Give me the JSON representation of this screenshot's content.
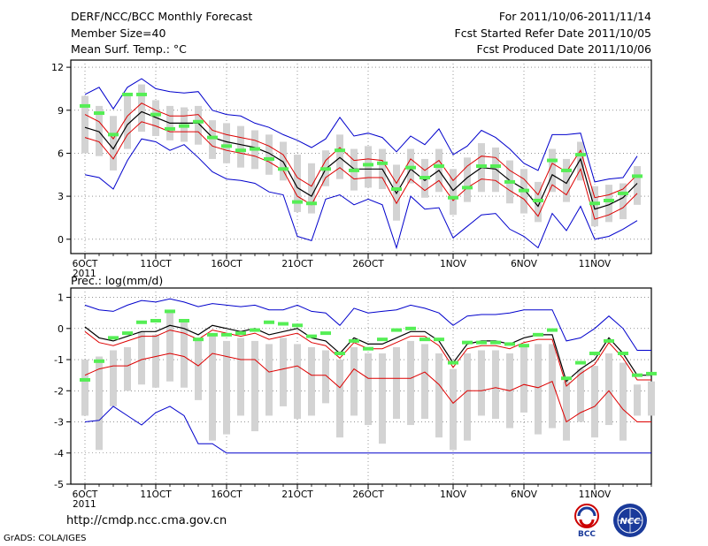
{
  "header": {
    "title": "DERF/NCC/BCC Monthly Forecast",
    "member_size": "Member Size=40",
    "variable": "Mean Surf. Temp.: °C",
    "period": "For 2011/10/06-2011/11/14",
    "fcst_started": "Fcst Started Refer Date 2011/10/05",
    "fcst_produced": "Fcst Produced Date 2011/10/06"
  },
  "footer": {
    "url": "http://cmdp.ncc.cma.gov.cn",
    "grads": "GrADS: COLA/IGES"
  },
  "logos": {
    "bcc": "BCC",
    "ncc": "NCC"
  },
  "colors": {
    "ensemble_mean": "#000000",
    "envelope": "#0000cc",
    "spread": "#dd0000",
    "member_bar": "#d3d3d3",
    "observed_marker": "#55ee55"
  },
  "chart_data": [
    {
      "type": "line",
      "title": "Mean Surf. Temp.: °C",
      "ylim": [
        -1,
        12.5
      ],
      "yticks": [
        0,
        3,
        6,
        9,
        12
      ],
      "x_tick_labels": [
        "6OCT",
        "11OCT",
        "16OCT",
        "21OCT",
        "26OCT",
        "1NOV",
        "6NOV",
        "11NOV"
      ],
      "x_tick_days": [
        0,
        5,
        10,
        15,
        20,
        26,
        31,
        36
      ],
      "year_label": "2011",
      "series": [
        {
          "name": "ensemble mean",
          "values": [
            7.8,
            7.5,
            6.3,
            8.0,
            8.9,
            8.5,
            8.1,
            8.1,
            8.1,
            7.1,
            6.8,
            6.6,
            6.4,
            6.0,
            5.4,
            3.6,
            3.0,
            4.9,
            5.7,
            4.9,
            4.9,
            4.9,
            3.2,
            4.9,
            4.1,
            4.8,
            3.4,
            4.3,
            5.0,
            4.9,
            4.1,
            3.5,
            2.3,
            4.5,
            3.9,
            5.6,
            2.1,
            2.4,
            2.9,
            3.9
          ]
        },
        {
          "name": "upper envelope",
          "values": [
            10.1,
            10.6,
            9.1,
            10.6,
            11.2,
            10.5,
            10.3,
            10.2,
            10.3,
            9.0,
            8.7,
            8.6,
            8.1,
            7.8,
            7.3,
            6.9,
            6.4,
            7.0,
            8.5,
            7.2,
            7.4,
            7.1,
            6.1,
            7.2,
            6.6,
            7.7,
            5.9,
            6.5,
            7.6,
            7.1,
            6.3,
            5.3,
            4.8,
            7.3,
            7.3,
            7.4,
            4.0,
            4.2,
            4.3,
            5.8
          ]
        },
        {
          "name": "lower envelope",
          "values": [
            4.5,
            4.3,
            3.5,
            5.5,
            7.0,
            6.8,
            6.2,
            6.6,
            5.7,
            4.7,
            4.2,
            4.1,
            3.9,
            3.3,
            3.1,
            0.2,
            -0.1,
            2.8,
            3.1,
            2.4,
            2.8,
            2.4,
            -0.6,
            3.0,
            2.1,
            2.2,
            0.1,
            0.9,
            1.7,
            1.8,
            0.7,
            0.2,
            -0.6,
            1.8,
            0.6,
            2.3,
            0.0,
            0.2,
            0.7,
            1.3
          ]
        },
        {
          "name": "spread upper",
          "values": [
            8.7,
            8.2,
            7.0,
            8.6,
            9.5,
            9.0,
            8.6,
            8.6,
            8.7,
            7.6,
            7.3,
            7.1,
            6.9,
            6.5,
            5.9,
            4.3,
            3.7,
            5.5,
            6.4,
            5.5,
            5.6,
            5.5,
            3.9,
            5.6,
            4.8,
            5.5,
            4.1,
            5.1,
            5.8,
            5.7,
            4.8,
            4.2,
            3.1,
            5.3,
            4.7,
            6.2,
            2.9,
            3.1,
            3.5,
            4.5
          ]
        },
        {
          "name": "spread lower",
          "values": [
            7.1,
            6.8,
            5.6,
            7.3,
            8.2,
            7.9,
            7.5,
            7.5,
            7.5,
            6.5,
            6.2,
            6.0,
            5.8,
            5.4,
            4.8,
            3.0,
            2.4,
            4.3,
            5.0,
            4.2,
            4.3,
            4.3,
            2.5,
            4.2,
            3.4,
            4.1,
            2.7,
            3.6,
            4.2,
            4.1,
            3.4,
            2.8,
            1.6,
            3.8,
            3.1,
            4.9,
            1.4,
            1.7,
            2.2,
            3.2
          ]
        },
        {
          "name": "member bar top",
          "values": [
            10.0,
            9.3,
            8.6,
            10.0,
            10.8,
            9.7,
            9.3,
            9.2,
            9.3,
            8.3,
            8.1,
            7.9,
            7.6,
            7.3,
            6.8,
            5.9,
            5.3,
            6.2,
            7.3,
            6.3,
            6.5,
            6.3,
            5.2,
            6.3,
            5.6,
            6.3,
            4.9,
            5.7,
            6.7,
            6.4,
            5.5,
            4.9,
            4.0,
            6.3,
            5.6,
            6.8,
            3.7,
            3.8,
            3.9,
            5.1
          ]
        },
        {
          "name": "member bar bottom",
          "values": [
            6.0,
            5.8,
            4.8,
            6.3,
            7.5,
            7.2,
            6.9,
            6.8,
            6.6,
            5.6,
            5.3,
            5.0,
            4.9,
            4.5,
            4.1,
            1.9,
            1.8,
            3.7,
            4.2,
            3.4,
            3.6,
            3.5,
            1.3,
            3.9,
            2.9,
            3.3,
            1.7,
            2.6,
            3.3,
            3.3,
            2.5,
            1.8,
            1.2,
            3.3,
            2.6,
            4.1,
            0.9,
            1.2,
            1.4,
            2.4
          ]
        },
        {
          "name": "observed",
          "values": [
            9.3,
            8.8,
            7.3,
            10.1,
            10.1,
            8.7,
            7.7,
            7.9,
            8.2,
            7.1,
            6.5,
            6.2,
            6.3,
            5.6,
            4.9,
            2.6,
            2.5,
            4.9,
            6.2,
            4.8,
            5.2,
            5.3,
            3.5,
            5.0,
            4.3,
            5.1,
            2.9,
            3.6,
            5.1,
            5.1,
            4.0,
            3.4,
            2.7,
            5.5,
            4.8,
            5.9,
            2.5,
            2.7,
            3.2,
            4.4
          ]
        }
      ]
    },
    {
      "type": "line",
      "title": "Prec.: log(mm/d)",
      "ylim": [
        -5,
        1.3
      ],
      "yticks": [
        -5,
        -4,
        -3,
        -2,
        -1,
        0,
        1
      ],
      "x_tick_labels": [
        "6OCT",
        "11OCT",
        "16OCT",
        "21OCT",
        "26OCT",
        "1NOV",
        "6NOV",
        "11NOV"
      ],
      "x_tick_days": [
        0,
        5,
        10,
        15,
        20,
        26,
        31,
        36
      ],
      "year_label": "2011",
      "series": [
        {
          "name": "ensemble mean",
          "values": [
            0.05,
            -0.3,
            -0.4,
            -0.25,
            -0.1,
            -0.1,
            0.1,
            0.0,
            -0.2,
            0.1,
            0.0,
            -0.1,
            0.0,
            -0.2,
            -0.1,
            0.0,
            -0.3,
            -0.4,
            -0.8,
            -0.3,
            -0.5,
            -0.5,
            -0.3,
            -0.1,
            -0.1,
            -0.4,
            -1.1,
            -0.5,
            -0.4,
            -0.4,
            -0.5,
            -0.3,
            -0.2,
            -0.2,
            -1.7,
            -1.3,
            -1.0,
            -0.3,
            -0.8,
            -1.5,
            -1.5
          ]
        },
        {
          "name": "upper envelope",
          "values": [
            0.75,
            0.6,
            0.55,
            0.75,
            0.9,
            0.85,
            0.95,
            0.85,
            0.7,
            0.8,
            0.75,
            0.7,
            0.75,
            0.6,
            0.6,
            0.75,
            0.55,
            0.5,
            0.1,
            0.65,
            0.5,
            0.55,
            0.6,
            0.75,
            0.65,
            0.5,
            0.1,
            0.4,
            0.45,
            0.45,
            0.5,
            0.6,
            0.6,
            0.6,
            -0.4,
            -0.3,
            0.0,
            0.4,
            0.0,
            -0.7,
            -0.7
          ]
        },
        {
          "name": "lower envelope",
          "values": [
            -3.0,
            -2.95,
            -2.5,
            -2.8,
            -3.1,
            -2.7,
            -2.5,
            -2.8,
            -3.7,
            -3.7,
            -4.0,
            -4.0,
            -4.0,
            -4.0,
            -4.0,
            -4.0,
            -4.0,
            -4.0,
            -4.0,
            -4.0,
            -4.0,
            -4.0,
            -4.0,
            -4.0,
            -4.0,
            -4.0,
            -4.0,
            -4.0,
            -4.0,
            -4.0,
            -4.0,
            -4.0,
            -4.0,
            -4.0,
            -4.0,
            -4.0,
            -4.0,
            -4.0,
            -4.0,
            -4.0,
            -4.0
          ]
        },
        {
          "name": "spread upper",
          "values": [
            -0.1,
            -0.45,
            -0.55,
            -0.4,
            -0.25,
            -0.25,
            -0.05,
            -0.15,
            -0.35,
            -0.05,
            -0.15,
            -0.25,
            -0.15,
            -0.35,
            -0.25,
            -0.15,
            -0.45,
            -0.55,
            -0.95,
            -0.45,
            -0.65,
            -0.65,
            -0.45,
            -0.25,
            -0.25,
            -0.55,
            -1.25,
            -0.65,
            -0.55,
            -0.55,
            -0.65,
            -0.45,
            -0.35,
            -0.35,
            -1.85,
            -1.45,
            -1.15,
            -0.45,
            -0.95,
            -1.65,
            -1.65
          ]
        },
        {
          "name": "spread lower",
          "values": [
            -1.5,
            -1.3,
            -1.2,
            -1.2,
            -1.0,
            -0.9,
            -0.8,
            -0.9,
            -1.2,
            -0.8,
            -0.9,
            -1.0,
            -1.0,
            -1.4,
            -1.3,
            -1.2,
            -1.5,
            -1.5,
            -1.9,
            -1.3,
            -1.6,
            -1.6,
            -1.6,
            -1.6,
            -1.4,
            -1.8,
            -2.4,
            -2.0,
            -2.0,
            -1.9,
            -2.0,
            -1.8,
            -1.9,
            -1.7,
            -3.0,
            -2.7,
            -2.5,
            -2.0,
            -2.6,
            -3.0,
            -3.0
          ]
        },
        {
          "name": "member bar top",
          "values": [
            -1.0,
            -0.9,
            -0.7,
            -0.6,
            -0.1,
            -0.2,
            0.6,
            0.2,
            -0.4,
            -0.2,
            -0.4,
            -0.3,
            -0.4,
            -0.5,
            -0.3,
            -0.5,
            -0.6,
            -0.7,
            -1.0,
            -0.6,
            -0.8,
            -0.8,
            -0.6,
            -0.4,
            -0.5,
            -0.8,
            -1.3,
            -0.8,
            -0.7,
            -0.7,
            -0.8,
            -0.6,
            -0.5,
            -0.5,
            -1.7,
            -1.3,
            -1.2,
            -0.8,
            -1.1,
            -1.8,
            -1.7
          ]
        },
        {
          "name": "member bar bottom",
          "values": [
            -2.8,
            -3.9,
            -2.5,
            -2.0,
            -1.8,
            -1.9,
            -1.7,
            -1.9,
            -2.3,
            -3.6,
            -3.4,
            -2.8,
            -3.3,
            -2.8,
            -2.5,
            -2.9,
            -2.8,
            -2.4,
            -3.5,
            -2.8,
            -3.1,
            -3.7,
            -2.9,
            -3.1,
            -2.9,
            -3.5,
            -3.9,
            -3.6,
            -2.8,
            -2.9,
            -3.2,
            -2.7,
            -3.4,
            -3.2,
            -3.6,
            -3.0,
            -3.5,
            -3.1,
            -3.6,
            -2.8,
            -2.8
          ]
        },
        {
          "name": "observed",
          "values": [
            -1.65,
            -1.05,
            -0.3,
            -0.15,
            0.2,
            0.25,
            0.55,
            0.25,
            -0.35,
            -0.2,
            -0.2,
            -0.15,
            -0.05,
            0.2,
            0.15,
            0.1,
            -0.25,
            -0.15,
            -0.8,
            -0.4,
            -0.65,
            -0.35,
            -0.05,
            0.0,
            -0.35,
            -0.35,
            -1.1,
            -0.45,
            -0.45,
            -0.45,
            -0.5,
            -0.55,
            -0.2,
            -0.05,
            -1.6,
            -1.1,
            -0.8,
            -0.4,
            -0.8,
            -1.5,
            -1.45
          ]
        }
      ]
    }
  ]
}
